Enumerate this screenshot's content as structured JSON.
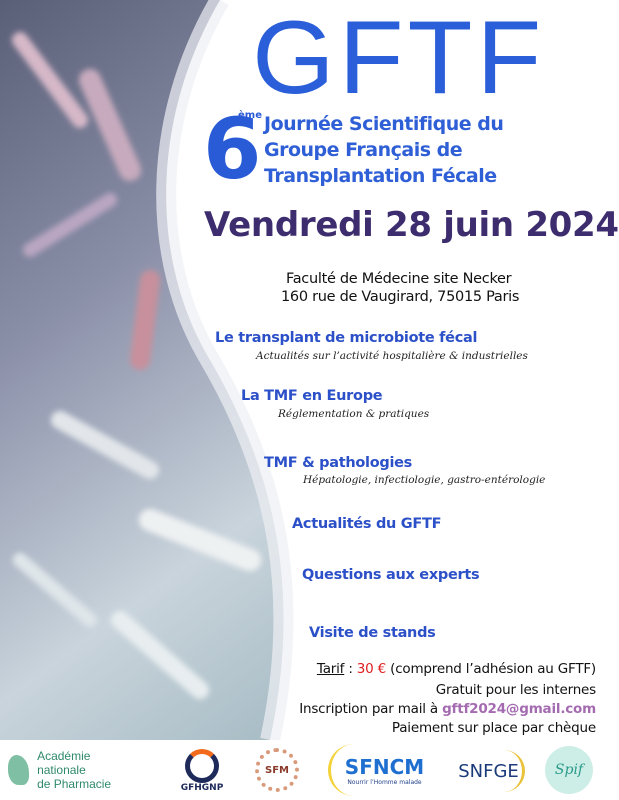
{
  "logo_text": "GFTF",
  "edition": {
    "number": "6",
    "suffix": "ème"
  },
  "heading_lines": [
    "Journée Scientifique du",
    "Groupe Français de",
    "Transplantation Fécale"
  ],
  "date": "Vendredi 28 juin 2024",
  "address": [
    "Faculté de Médecine site Necker",
    "160 rue de Vaugirard, 75015 Paris"
  ],
  "program": [
    {
      "title": "Le transplant de microbiote fécal",
      "subtitle": "Actualités sur l’activité hospitalière & industrielles"
    },
    {
      "title": "La TMF en Europe",
      "subtitle": "Réglementation & pratiques"
    },
    {
      "title": "TMF & pathologies",
      "subtitle": "Hépatologie, infectiologie, gastro-entérologie"
    },
    {
      "title": "Actualités du GFTF"
    },
    {
      "title": "Questions aux experts"
    },
    {
      "title": "Visite de stands"
    }
  ],
  "registration": {
    "tarif_label": "Tarif",
    "tarif_sep": " : ",
    "price": "30 €",
    "price_note": " (comprend l’adhésion au GFTF)",
    "free": "Gratuit pour les internes",
    "mail_prefix": "Inscription par mail à ",
    "email": "gftf2024@gmail.com",
    "payment": "Paiement sur place par chèque"
  },
  "partners": [
    {
      "name": "Académie nationale de Pharmacie",
      "line1": "Académie nationale",
      "line2": "de Pharmacie"
    },
    {
      "name": "GFHGNP"
    },
    {
      "name": "SFM"
    },
    {
      "name": "SFNCM",
      "tagline": "Nourrir l’Homme malade"
    },
    {
      "name": "SNFGE"
    },
    {
      "name": "Spif"
    }
  ],
  "colors": {
    "brand_blue": "#2b5fd9",
    "date_purple": "#3d2c6e",
    "price_red": "#e02020",
    "email_purple": "#a46bb0"
  }
}
